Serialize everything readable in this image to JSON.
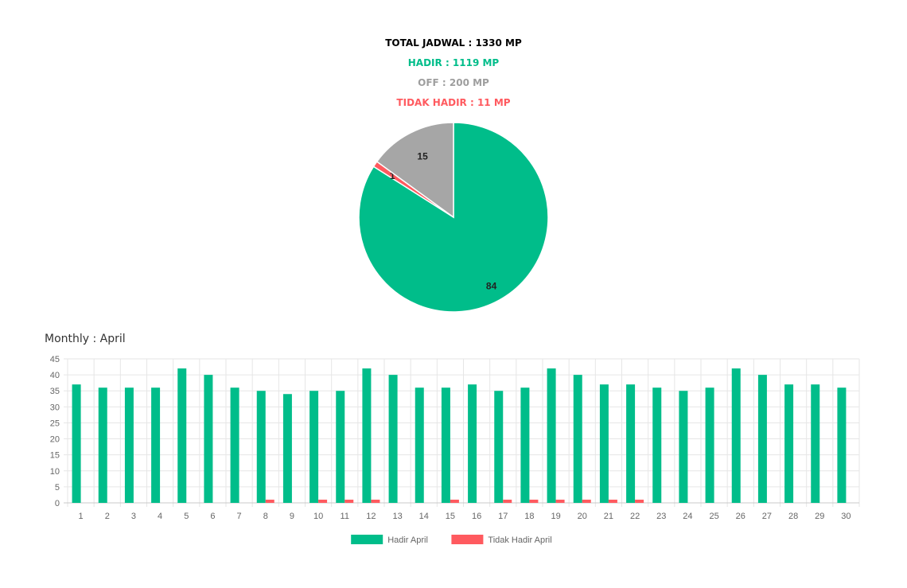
{
  "summary": {
    "total": "TOTAL JADWAL : 1330 MP",
    "hadir": "HADIR : 1119 MP",
    "off": "OFF : 200 MP",
    "tidak_hadir": "TIDAK HADIR : 11 MP"
  },
  "colors": {
    "total": "#000000",
    "hadir": "#00bd8a",
    "off": "#9e9e9e",
    "tidak_hadir": "#ff5a5f",
    "off_slice": "#a6a6a6"
  },
  "monthly_title": "Monthly : April",
  "chart_data": [
    {
      "type": "pie",
      "title": "",
      "labels": [
        "84",
        "1",
        "15"
      ],
      "values": [
        84,
        1,
        15
      ],
      "colors": [
        "#00bd8a",
        "#ff5a5f",
        "#a6a6a6"
      ],
      "start_angle_deg": 0,
      "direction": "clockwise"
    },
    {
      "type": "bar",
      "title": "",
      "xlabel": "",
      "ylabel": "",
      "categories": [
        "1",
        "2",
        "3",
        "4",
        "5",
        "6",
        "7",
        "8",
        "9",
        "10",
        "11",
        "12",
        "13",
        "14",
        "15",
        "16",
        "17",
        "18",
        "19",
        "20",
        "21",
        "22",
        "23",
        "24",
        "25",
        "26",
        "27",
        "28",
        "29",
        "30"
      ],
      "series": [
        {
          "name": "Hadir April",
          "color": "#00bd8a",
          "values": [
            37,
            36,
            36,
            36,
            42,
            40,
            36,
            35,
            34,
            35,
            35,
            42,
            40,
            36,
            36,
            37,
            35,
            36,
            42,
            40,
            37,
            37,
            36,
            35,
            36,
            42,
            40,
            37,
            37,
            36
          ]
        },
        {
          "name": "Tidak Hadir April",
          "color": "#ff5a5f",
          "values": [
            0,
            0,
            0,
            0,
            0,
            0,
            0,
            1,
            0,
            1,
            1,
            1,
            0,
            0,
            1,
            0,
            1,
            1,
            1,
            1,
            1,
            1,
            0,
            0,
            0,
            0,
            0,
            0,
            0,
            0
          ]
        }
      ],
      "yticks": [
        "0",
        "5",
        "10",
        "15",
        "20",
        "25",
        "30",
        "35",
        "40",
        "45"
      ],
      "ylim": [
        0,
        45
      ],
      "grid": true,
      "legend": "bottom-center"
    }
  ]
}
